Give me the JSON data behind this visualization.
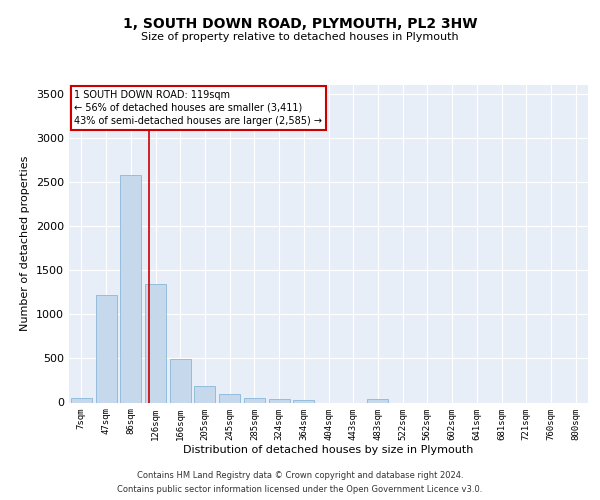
{
  "title": "1, SOUTH DOWN ROAD, PLYMOUTH, PL2 3HW",
  "subtitle": "Size of property relative to detached houses in Plymouth",
  "xlabel": "Distribution of detached houses by size in Plymouth",
  "ylabel": "Number of detached properties",
  "bar_color": "#c5d8ec",
  "bar_edge_color": "#7aafd4",
  "categories": [
    "7sqm",
    "47sqm",
    "86sqm",
    "126sqm",
    "166sqm",
    "205sqm",
    "245sqm",
    "285sqm",
    "324sqm",
    "364sqm",
    "404sqm",
    "443sqm",
    "483sqm",
    "522sqm",
    "562sqm",
    "602sqm",
    "641sqm",
    "681sqm",
    "721sqm",
    "760sqm",
    "800sqm"
  ],
  "values": [
    55,
    1220,
    2580,
    1340,
    490,
    185,
    100,
    55,
    40,
    25,
    0,
    0,
    35,
    0,
    0,
    0,
    0,
    0,
    0,
    0,
    0
  ],
  "ylim": [
    0,
    3600
  ],
  "yticks": [
    0,
    500,
    1000,
    1500,
    2000,
    2500,
    3000,
    3500
  ],
  "property_line_x": 2.72,
  "annotation_text": "1 SOUTH DOWN ROAD: 119sqm\n← 56% of detached houses are smaller (3,411)\n43% of semi-detached houses are larger (2,585) →",
  "annotation_box_color": "#ffffff",
  "annotation_box_edge_color": "#cc0000",
  "footer_line1": "Contains HM Land Registry data © Crown copyright and database right 2024.",
  "footer_line2": "Contains public sector information licensed under the Open Government Licence v3.0.",
  "background_color": "#e8eef8",
  "grid_color": "#ffffff",
  "fig_bg_color": "#ffffff",
  "title_fontsize": 10,
  "subtitle_fontsize": 8,
  "ylabel_fontsize": 8,
  "xlabel_fontsize": 8,
  "ytick_fontsize": 8,
  "xtick_fontsize": 6.5,
  "annotation_fontsize": 7,
  "footer_fontsize": 6
}
